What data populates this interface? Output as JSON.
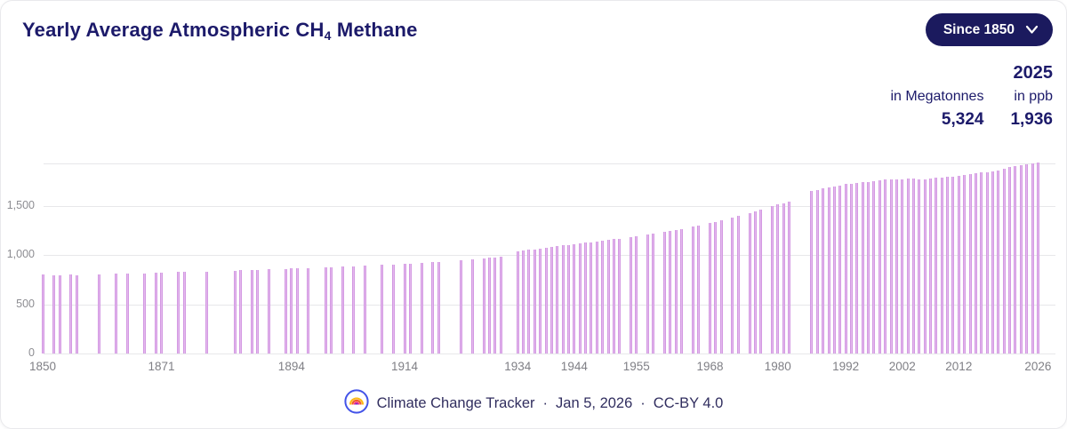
{
  "header": {
    "title_prefix": "Yearly Average Atmospheric CH",
    "title_subscript": "4",
    "title_suffix": " Methane",
    "range_dropdown_label": "Since 1850"
  },
  "stats": {
    "year": "2025",
    "megatonnes_label": "in Megatonnes",
    "megatonnes_value": "5,324",
    "ppb_label": "in ppb",
    "ppb_value": "1,936"
  },
  "footer": {
    "source": "Climate Change Tracker",
    "separator": "·",
    "date": "Jan 5, 2026",
    "license": "CC-BY 4.0",
    "logo": "rainbow-logo"
  },
  "colors": {
    "accent_navy": "#1c1a6a",
    "button_bg": "#1b1a5e",
    "bar_fill": "#d89ce4",
    "bar_edge": "#c783da",
    "gridline": "#e7e7ea",
    "tick_text": "#8d8d92",
    "footer_text": "#312e5f"
  },
  "chart_data": {
    "type": "bar",
    "title": "Yearly Average Atmospheric CH4 Methane",
    "ylabel": "ppb",
    "x_range": [
      1850,
      2026
    ],
    "top_gridline_value": 1936,
    "grid": true,
    "y_ticks": [
      {
        "value": 0,
        "label": "0"
      },
      {
        "value": 500,
        "label": "500"
      },
      {
        "value": 1000,
        "label": "1,000"
      },
      {
        "value": 1500,
        "label": "1,500"
      }
    ],
    "x_ticks": [
      1850,
      1871,
      1894,
      1914,
      1934,
      1944,
      1955,
      1968,
      1980,
      1992,
      2002,
      2012,
      2026
    ],
    "points": [
      [
        1850,
        808
      ],
      [
        1852,
        800
      ],
      [
        1853,
        797
      ],
      [
        1855,
        802
      ],
      [
        1856,
        797
      ],
      [
        1860,
        805
      ],
      [
        1863,
        810
      ],
      [
        1865,
        812
      ],
      [
        1868,
        818
      ],
      [
        1870,
        822
      ],
      [
        1871,
        824
      ],
      [
        1874,
        828
      ],
      [
        1875,
        830
      ],
      [
        1879,
        835
      ],
      [
        1884,
        845
      ],
      [
        1885,
        848
      ],
      [
        1887,
        852
      ],
      [
        1888,
        853
      ],
      [
        1890,
        858
      ],
      [
        1893,
        862
      ],
      [
        1894,
        864
      ],
      [
        1895,
        866
      ],
      [
        1897,
        870
      ],
      [
        1900,
        878
      ],
      [
        1901,
        880
      ],
      [
        1903,
        884
      ],
      [
        1905,
        888
      ],
      [
        1907,
        893
      ],
      [
        1910,
        902
      ],
      [
        1912,
        908
      ],
      [
        1914,
        915
      ],
      [
        1915,
        918
      ],
      [
        1917,
        925
      ],
      [
        1919,
        932
      ],
      [
        1920,
        936
      ],
      [
        1924,
        952
      ],
      [
        1926,
        960
      ],
      [
        1928,
        970
      ],
      [
        1929,
        974
      ],
      [
        1930,
        978
      ],
      [
        1931,
        982
      ],
      [
        1934,
        1040
      ],
      [
        1935,
        1048
      ],
      [
        1936,
        1055
      ],
      [
        1937,
        1062
      ],
      [
        1938,
        1070
      ],
      [
        1939,
        1078
      ],
      [
        1940,
        1086
      ],
      [
        1941,
        1093
      ],
      [
        1942,
        1100
      ],
      [
        1943,
        1107
      ],
      [
        1944,
        1114
      ],
      [
        1945,
        1121
      ],
      [
        1946,
        1128
      ],
      [
        1947,
        1135
      ],
      [
        1948,
        1142
      ],
      [
        1949,
        1149
      ],
      [
        1950,
        1156
      ],
      [
        1951,
        1163
      ],
      [
        1952,
        1170
      ],
      [
        1954,
        1185
      ],
      [
        1955,
        1193
      ],
      [
        1957,
        1210
      ],
      [
        1958,
        1219
      ],
      [
        1960,
        1238
      ],
      [
        1961,
        1248
      ],
      [
        1962,
        1258
      ],
      [
        1963,
        1268
      ],
      [
        1965,
        1290
      ],
      [
        1966,
        1302
      ],
      [
        1968,
        1328
      ],
      [
        1969,
        1342
      ],
      [
        1970,
        1356
      ],
      [
        1972,
        1386
      ],
      [
        1973,
        1402
      ],
      [
        1975,
        1432
      ],
      [
        1976,
        1448
      ],
      [
        1977,
        1465
      ],
      [
        1979,
        1499
      ],
      [
        1980,
        1516
      ],
      [
        1981,
        1533
      ],
      [
        1982,
        1550
      ],
      [
        1986,
        1655
      ],
      [
        1987,
        1668
      ],
      [
        1988,
        1680
      ],
      [
        1989,
        1692
      ],
      [
        1990,
        1703
      ],
      [
        1991,
        1714
      ],
      [
        1992,
        1724
      ],
      [
        1993,
        1730
      ],
      [
        1994,
        1737
      ],
      [
        1995,
        1744
      ],
      [
        1996,
        1750
      ],
      [
        1997,
        1755
      ],
      [
        1998,
        1764
      ],
      [
        1999,
        1771
      ],
      [
        2000,
        1774
      ],
      [
        2001,
        1773
      ],
      [
        2002,
        1774
      ],
      [
        2003,
        1778
      ],
      [
        2004,
        1778
      ],
      [
        2005,
        1776
      ],
      [
        2006,
        1777
      ],
      [
        2007,
        1782
      ],
      [
        2008,
        1788
      ],
      [
        2009,
        1794
      ],
      [
        2010,
        1799
      ],
      [
        2011,
        1804
      ],
      [
        2012,
        1809
      ],
      [
        2013,
        1814
      ],
      [
        2014,
        1823
      ],
      [
        2015,
        1834
      ],
      [
        2016,
        1843
      ],
      [
        2017,
        1850
      ],
      [
        2018,
        1858
      ],
      [
        2019,
        1867
      ],
      [
        2020,
        1879
      ],
      [
        2021,
        1896
      ],
      [
        2022,
        1911
      ],
      [
        2023,
        1922
      ],
      [
        2024,
        1930
      ],
      [
        2025,
        1936
      ],
      [
        2026,
        1944
      ]
    ]
  }
}
